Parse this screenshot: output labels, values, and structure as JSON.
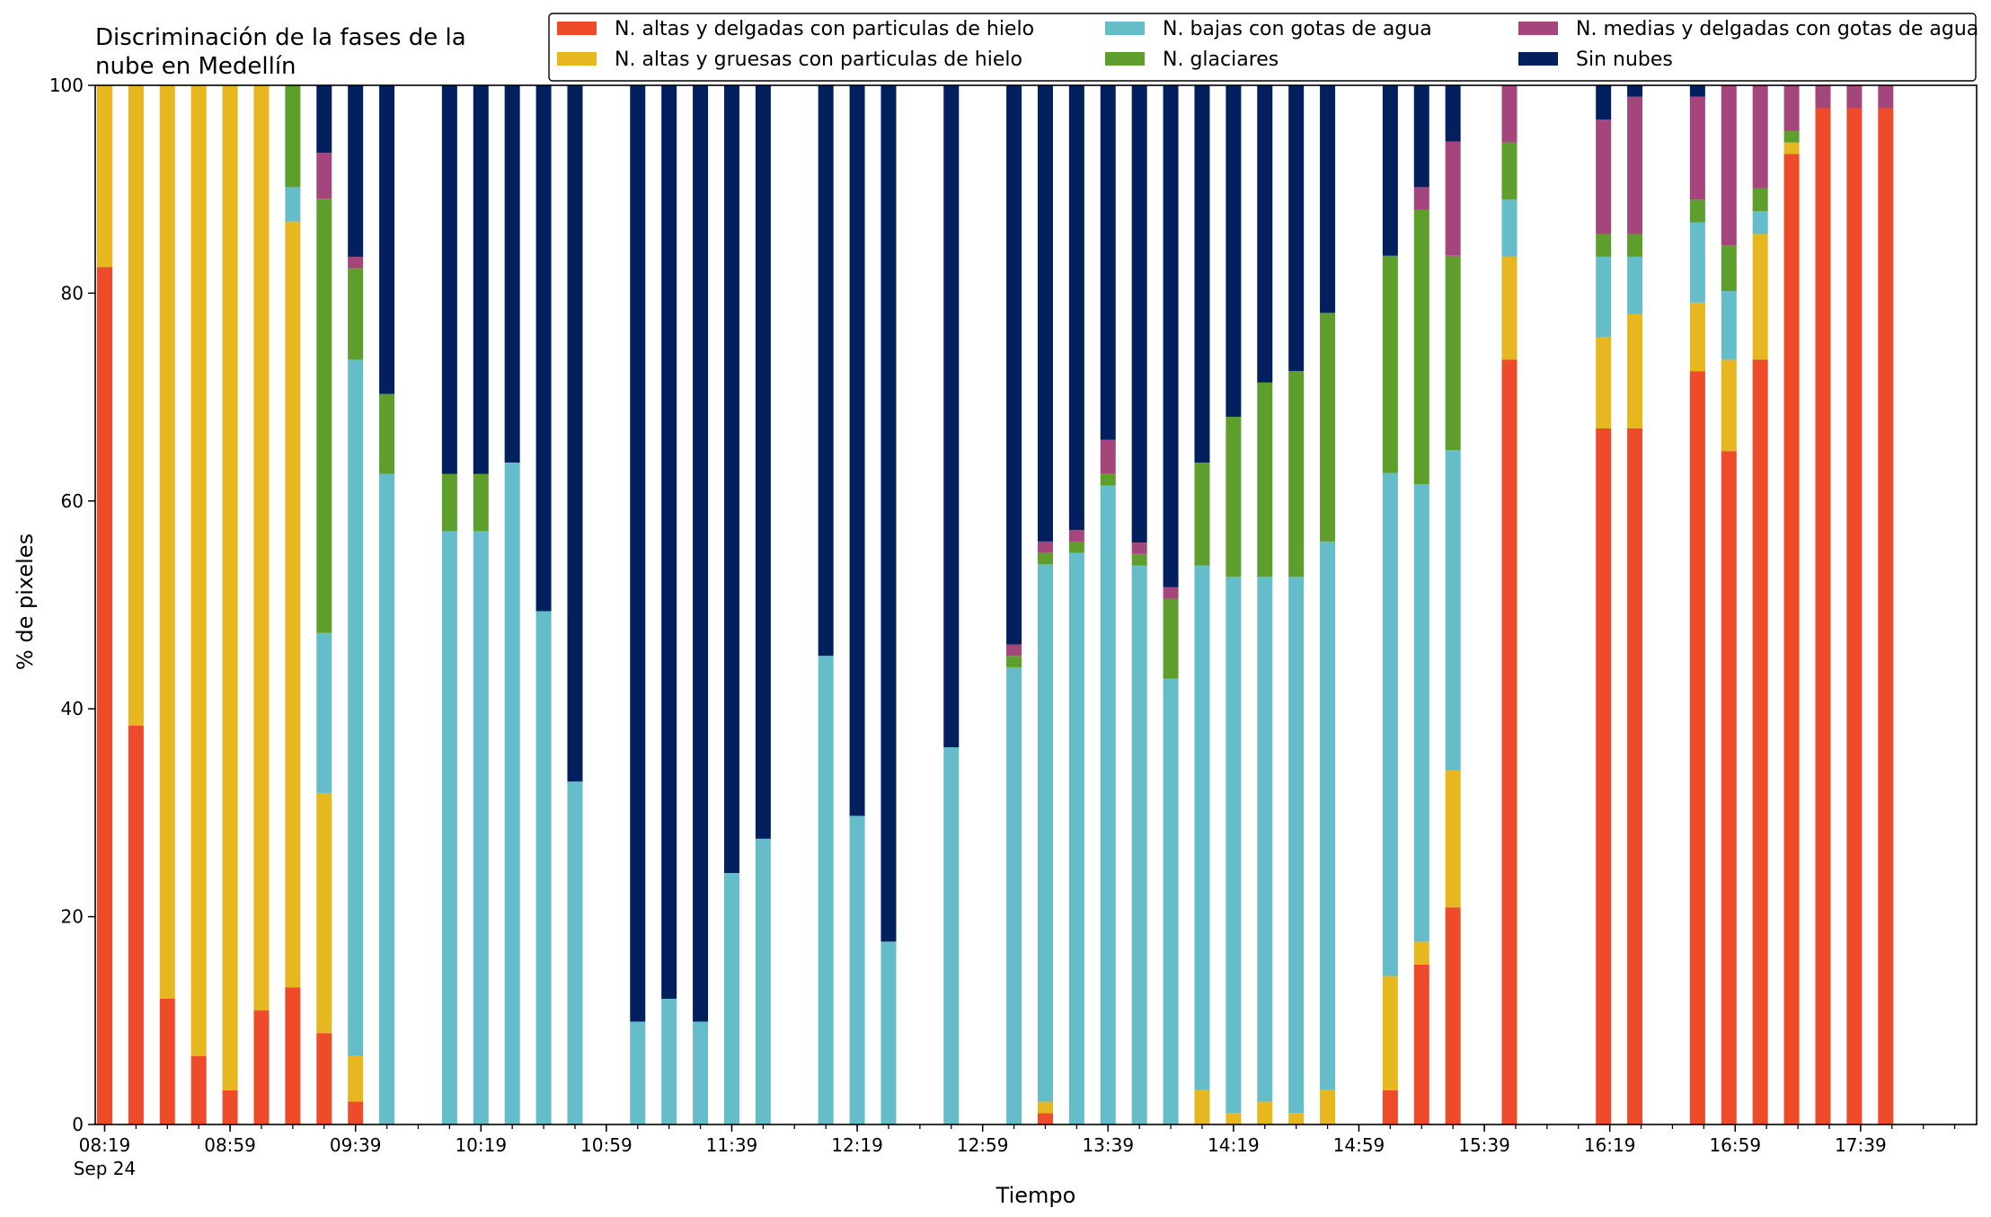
{
  "chart_data": {
    "type": "bar",
    "stacked": true,
    "title_lines": [
      "Discriminación de la fases de la",
      "nube en Medellín"
    ],
    "xlabel": "Tiempo",
    "ylabel": "% de pixeles",
    "ylim": [
      0,
      100
    ],
    "yticks": [
      0,
      20,
      40,
      60,
      80,
      100
    ],
    "xlim": [
      "08:16",
      "18:16"
    ],
    "xticks": [
      {
        "time": "08:19",
        "label": "08:19",
        "sublabel": "Sep 24"
      },
      {
        "time": "08:59",
        "label": "08:59"
      },
      {
        "time": "09:39",
        "label": "09:39"
      },
      {
        "time": "10:19",
        "label": "10:19"
      },
      {
        "time": "10:59",
        "label": "10:59"
      },
      {
        "time": "11:39",
        "label": "11:39"
      },
      {
        "time": "12:19",
        "label": "12:19"
      },
      {
        "time": "12:59",
        "label": "12:59"
      },
      {
        "time": "13:39",
        "label": "13:39"
      },
      {
        "time": "14:19",
        "label": "14:19"
      },
      {
        "time": "14:59",
        "label": "14:59"
      },
      {
        "time": "15:39",
        "label": "15:39"
      },
      {
        "time": "16:19",
        "label": "16:19"
      },
      {
        "time": "16:59",
        "label": "16:59"
      },
      {
        "time": "17:39",
        "label": "17:39"
      }
    ],
    "minor_tick_interval_minutes": 10,
    "legend_position": "top-right",
    "legend_columns": 3,
    "series_order": [
      "altas_delgadas",
      "altas_gruesas",
      "bajas_agua",
      "glaciares",
      "medias_agua",
      "sin_nubes"
    ],
    "legend_order": [
      "altas_delgadas",
      "altas_gruesas",
      "bajas_agua",
      "glaciares",
      "medias_agua",
      "sin_nubes"
    ],
    "series": {
      "altas_delgadas": {
        "name": "N. altas y delgadas con particulas de hielo",
        "color": "#ee4b2b"
      },
      "altas_gruesas": {
        "name": "N. altas y gruesas con particulas de hielo",
        "color": "#e6b71e"
      },
      "bajas_agua": {
        "name": "N. bajas con gotas de agua",
        "color": "#66bdca"
      },
      "glaciares": {
        "name": "N. glaciares",
        "color": "#5e9e2d"
      },
      "medias_agua": {
        "name": "N. medias y delgadas con gotas de agua",
        "color": "#a4467c"
      },
      "sin_nubes": {
        "name": "Sin nubes",
        "color": "#03205e"
      }
    },
    "bars": [
      {
        "time": "08:19",
        "values": [
          82.5,
          17.5,
          0,
          0,
          0,
          0
        ]
      },
      {
        "time": "08:29",
        "values": [
          38.4,
          61.6,
          0,
          0,
          0,
          0
        ]
      },
      {
        "time": "08:39",
        "values": [
          12.1,
          87.9,
          0,
          0,
          0,
          0
        ]
      },
      {
        "time": "08:49",
        "values": [
          6.6,
          93.4,
          0,
          0,
          0,
          0
        ]
      },
      {
        "time": "08:59",
        "values": [
          3.3,
          96.7,
          0,
          0,
          0,
          0
        ]
      },
      {
        "time": "09:09",
        "values": [
          11.0,
          89.0,
          0,
          0,
          0,
          0
        ]
      },
      {
        "time": "09:19",
        "values": [
          13.2,
          73.7,
          3.3,
          9.8,
          0,
          0
        ]
      },
      {
        "time": "09:29",
        "values": [
          8.8,
          23.1,
          15.4,
          41.8,
          4.4,
          6.5
        ]
      },
      {
        "time": "09:39",
        "values": [
          2.2,
          4.4,
          67.0,
          8.8,
          1.1,
          16.5
        ]
      },
      {
        "time": "09:49",
        "values": [
          0,
          0,
          62.6,
          7.7,
          0,
          29.7
        ]
      },
      {
        "time": "10:09",
        "values": [
          0,
          0,
          57.1,
          5.5,
          0,
          37.4
        ]
      },
      {
        "time": "10:19",
        "values": [
          0,
          0,
          57.1,
          5.5,
          0,
          37.4
        ]
      },
      {
        "time": "10:29",
        "values": [
          0,
          0,
          63.7,
          0,
          0,
          36.3
        ]
      },
      {
        "time": "10:39",
        "values": [
          0,
          0,
          49.4,
          0,
          0,
          50.6
        ]
      },
      {
        "time": "10:49",
        "values": [
          0,
          0,
          33.0,
          0,
          0,
          67.0
        ]
      },
      {
        "time": "11:09",
        "values": [
          0,
          0,
          9.9,
          0,
          0,
          90.1
        ]
      },
      {
        "time": "11:19",
        "values": [
          0,
          0,
          12.1,
          0,
          0,
          87.9
        ]
      },
      {
        "time": "11:29",
        "values": [
          0,
          0,
          9.9,
          0,
          0,
          90.1
        ]
      },
      {
        "time": "11:39",
        "values": [
          0,
          0,
          24.2,
          0,
          0,
          75.8
        ]
      },
      {
        "time": "11:49",
        "values": [
          0,
          0,
          27.5,
          0,
          0,
          72.5
        ]
      },
      {
        "time": "12:09",
        "values": [
          0,
          0,
          45.1,
          0,
          0,
          54.9
        ]
      },
      {
        "time": "12:19",
        "values": [
          0,
          0,
          29.7,
          0,
          0,
          70.3
        ]
      },
      {
        "time": "12:29",
        "values": [
          0,
          0,
          17.6,
          0,
          0,
          82.4
        ]
      },
      {
        "time": "12:49",
        "values": [
          0,
          0,
          36.3,
          0,
          0,
          63.7
        ]
      },
      {
        "time": "13:09",
        "values": [
          0,
          0,
          44.0,
          1.1,
          1.1,
          53.8
        ]
      },
      {
        "time": "13:19",
        "values": [
          1.1,
          1.1,
          51.7,
          1.1,
          1.1,
          43.9
        ]
      },
      {
        "time": "13:29",
        "values": [
          0,
          0,
          55.0,
          1.1,
          1.1,
          42.8
        ]
      },
      {
        "time": "13:39",
        "values": [
          0,
          0,
          61.5,
          1.1,
          3.3,
          34.1
        ]
      },
      {
        "time": "13:49",
        "values": [
          0,
          0,
          53.8,
          1.1,
          1.1,
          44.0
        ]
      },
      {
        "time": "13:59",
        "values": [
          0,
          0,
          42.9,
          7.7,
          1.1,
          48.3
        ]
      },
      {
        "time": "14:09",
        "values": [
          0,
          3.3,
          50.5,
          9.9,
          0,
          36.3
        ]
      },
      {
        "time": "14:19",
        "values": [
          0,
          1.1,
          51.6,
          15.4,
          0,
          31.9
        ]
      },
      {
        "time": "14:29",
        "values": [
          0,
          2.2,
          50.5,
          18.7,
          0,
          28.6
        ]
      },
      {
        "time": "14:39",
        "values": [
          0,
          1.1,
          51.6,
          19.8,
          0,
          27.5
        ]
      },
      {
        "time": "14:49",
        "values": [
          0,
          3.3,
          52.8,
          22.0,
          0,
          21.9
        ]
      },
      {
        "time": "15:09",
        "values": [
          3.3,
          11.0,
          48.4,
          20.9,
          0,
          16.4
        ]
      },
      {
        "time": "15:19",
        "values": [
          15.4,
          2.2,
          44.0,
          26.4,
          2.2,
          9.8
        ]
      },
      {
        "time": "15:29",
        "values": [
          20.9,
          13.2,
          30.8,
          18.7,
          11.0,
          5.4
        ]
      },
      {
        "time": "15:47",
        "values": [
          73.6,
          9.9,
          5.5,
          5.5,
          5.5,
          0
        ]
      },
      {
        "time": "16:17",
        "values": [
          67.0,
          8.8,
          7.7,
          2.2,
          11.0,
          3.3
        ]
      },
      {
        "time": "16:27",
        "values": [
          67.0,
          11.0,
          5.5,
          2.2,
          13.2,
          1.1
        ]
      },
      {
        "time": "16:47",
        "values": [
          72.5,
          6.6,
          7.7,
          2.2,
          9.9,
          1.1
        ]
      },
      {
        "time": "16:57",
        "values": [
          64.8,
          8.8,
          6.6,
          4.4,
          15.4,
          0
        ]
      },
      {
        "time": "17:07",
        "values": [
          73.6,
          12.1,
          2.2,
          2.2,
          9.9,
          0
        ]
      },
      {
        "time": "17:17",
        "values": [
          93.4,
          1.1,
          0,
          1.1,
          4.4,
          0
        ]
      },
      {
        "time": "17:27",
        "values": [
          97.8,
          0,
          0,
          0,
          2.2,
          0
        ]
      },
      {
        "time": "17:37",
        "values": [
          97.8,
          0,
          0,
          0,
          2.2,
          0
        ]
      },
      {
        "time": "17:47",
        "values": [
          97.8,
          0,
          0,
          0,
          2.2,
          0
        ]
      }
    ]
  }
}
